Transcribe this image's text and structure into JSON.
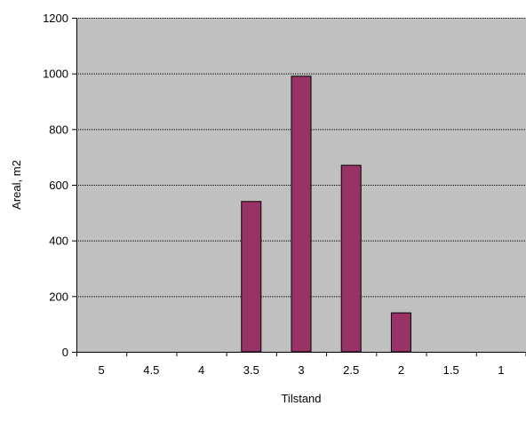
{
  "chart_data": {
    "type": "bar",
    "categories": [
      "5",
      "4.5",
      "4",
      "3.5",
      "3",
      "2.5",
      "2",
      "1.5",
      "1"
    ],
    "values": [
      0,
      0,
      0,
      540,
      990,
      670,
      140,
      0,
      0
    ],
    "xlabel": "Tilstand",
    "ylabel": "Areal, m2",
    "ylim": [
      0,
      1200
    ],
    "yticks": [
      "0",
      "200",
      "400",
      "600",
      "800",
      "1000",
      "1200"
    ],
    "grid": true,
    "legend": "none",
    "colors": {
      "bar_fill": "#993366",
      "bar_stroke": "#000000",
      "plot_background": "#c0c0c0",
      "gridline": "#000000"
    }
  }
}
